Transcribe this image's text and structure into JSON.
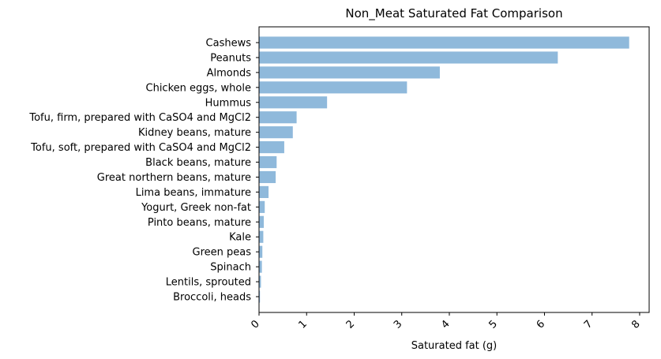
{
  "chart_data": {
    "type": "bar",
    "orientation": "horizontal",
    "title": "Non_Meat Saturated Fat Comparison",
    "xlabel": "Saturated fat (g)",
    "ylabel": "",
    "xlim": [
      0,
      8.2
    ],
    "xticks": [
      0,
      1,
      2,
      3,
      4,
      5,
      6,
      7,
      8
    ],
    "grid": false,
    "bar_color": "#8fb9db",
    "categories": [
      "Cashews",
      "Peanuts",
      "Almonds",
      "Chicken eggs, whole",
      "Hummus",
      "Tofu, firm, prepared with CaSO4 and MgCl2",
      "Kidney beans, mature",
      "Tofu, soft, prepared with CaSO4 and MgCl2",
      "Black beans, mature",
      "Great northern beans, mature",
      "Lima beans, immature",
      "Yogurt, Greek non-fat",
      "Pinto beans, mature",
      "Kale",
      "Green peas",
      "Spinach",
      "Lentils, sprouted",
      "Broccoli, heads"
    ],
    "values": [
      7.78,
      6.28,
      3.8,
      3.11,
      1.43,
      0.79,
      0.71,
      0.53,
      0.37,
      0.35,
      0.2,
      0.12,
      0.1,
      0.09,
      0.07,
      0.06,
      0.04,
      0.02
    ]
  }
}
